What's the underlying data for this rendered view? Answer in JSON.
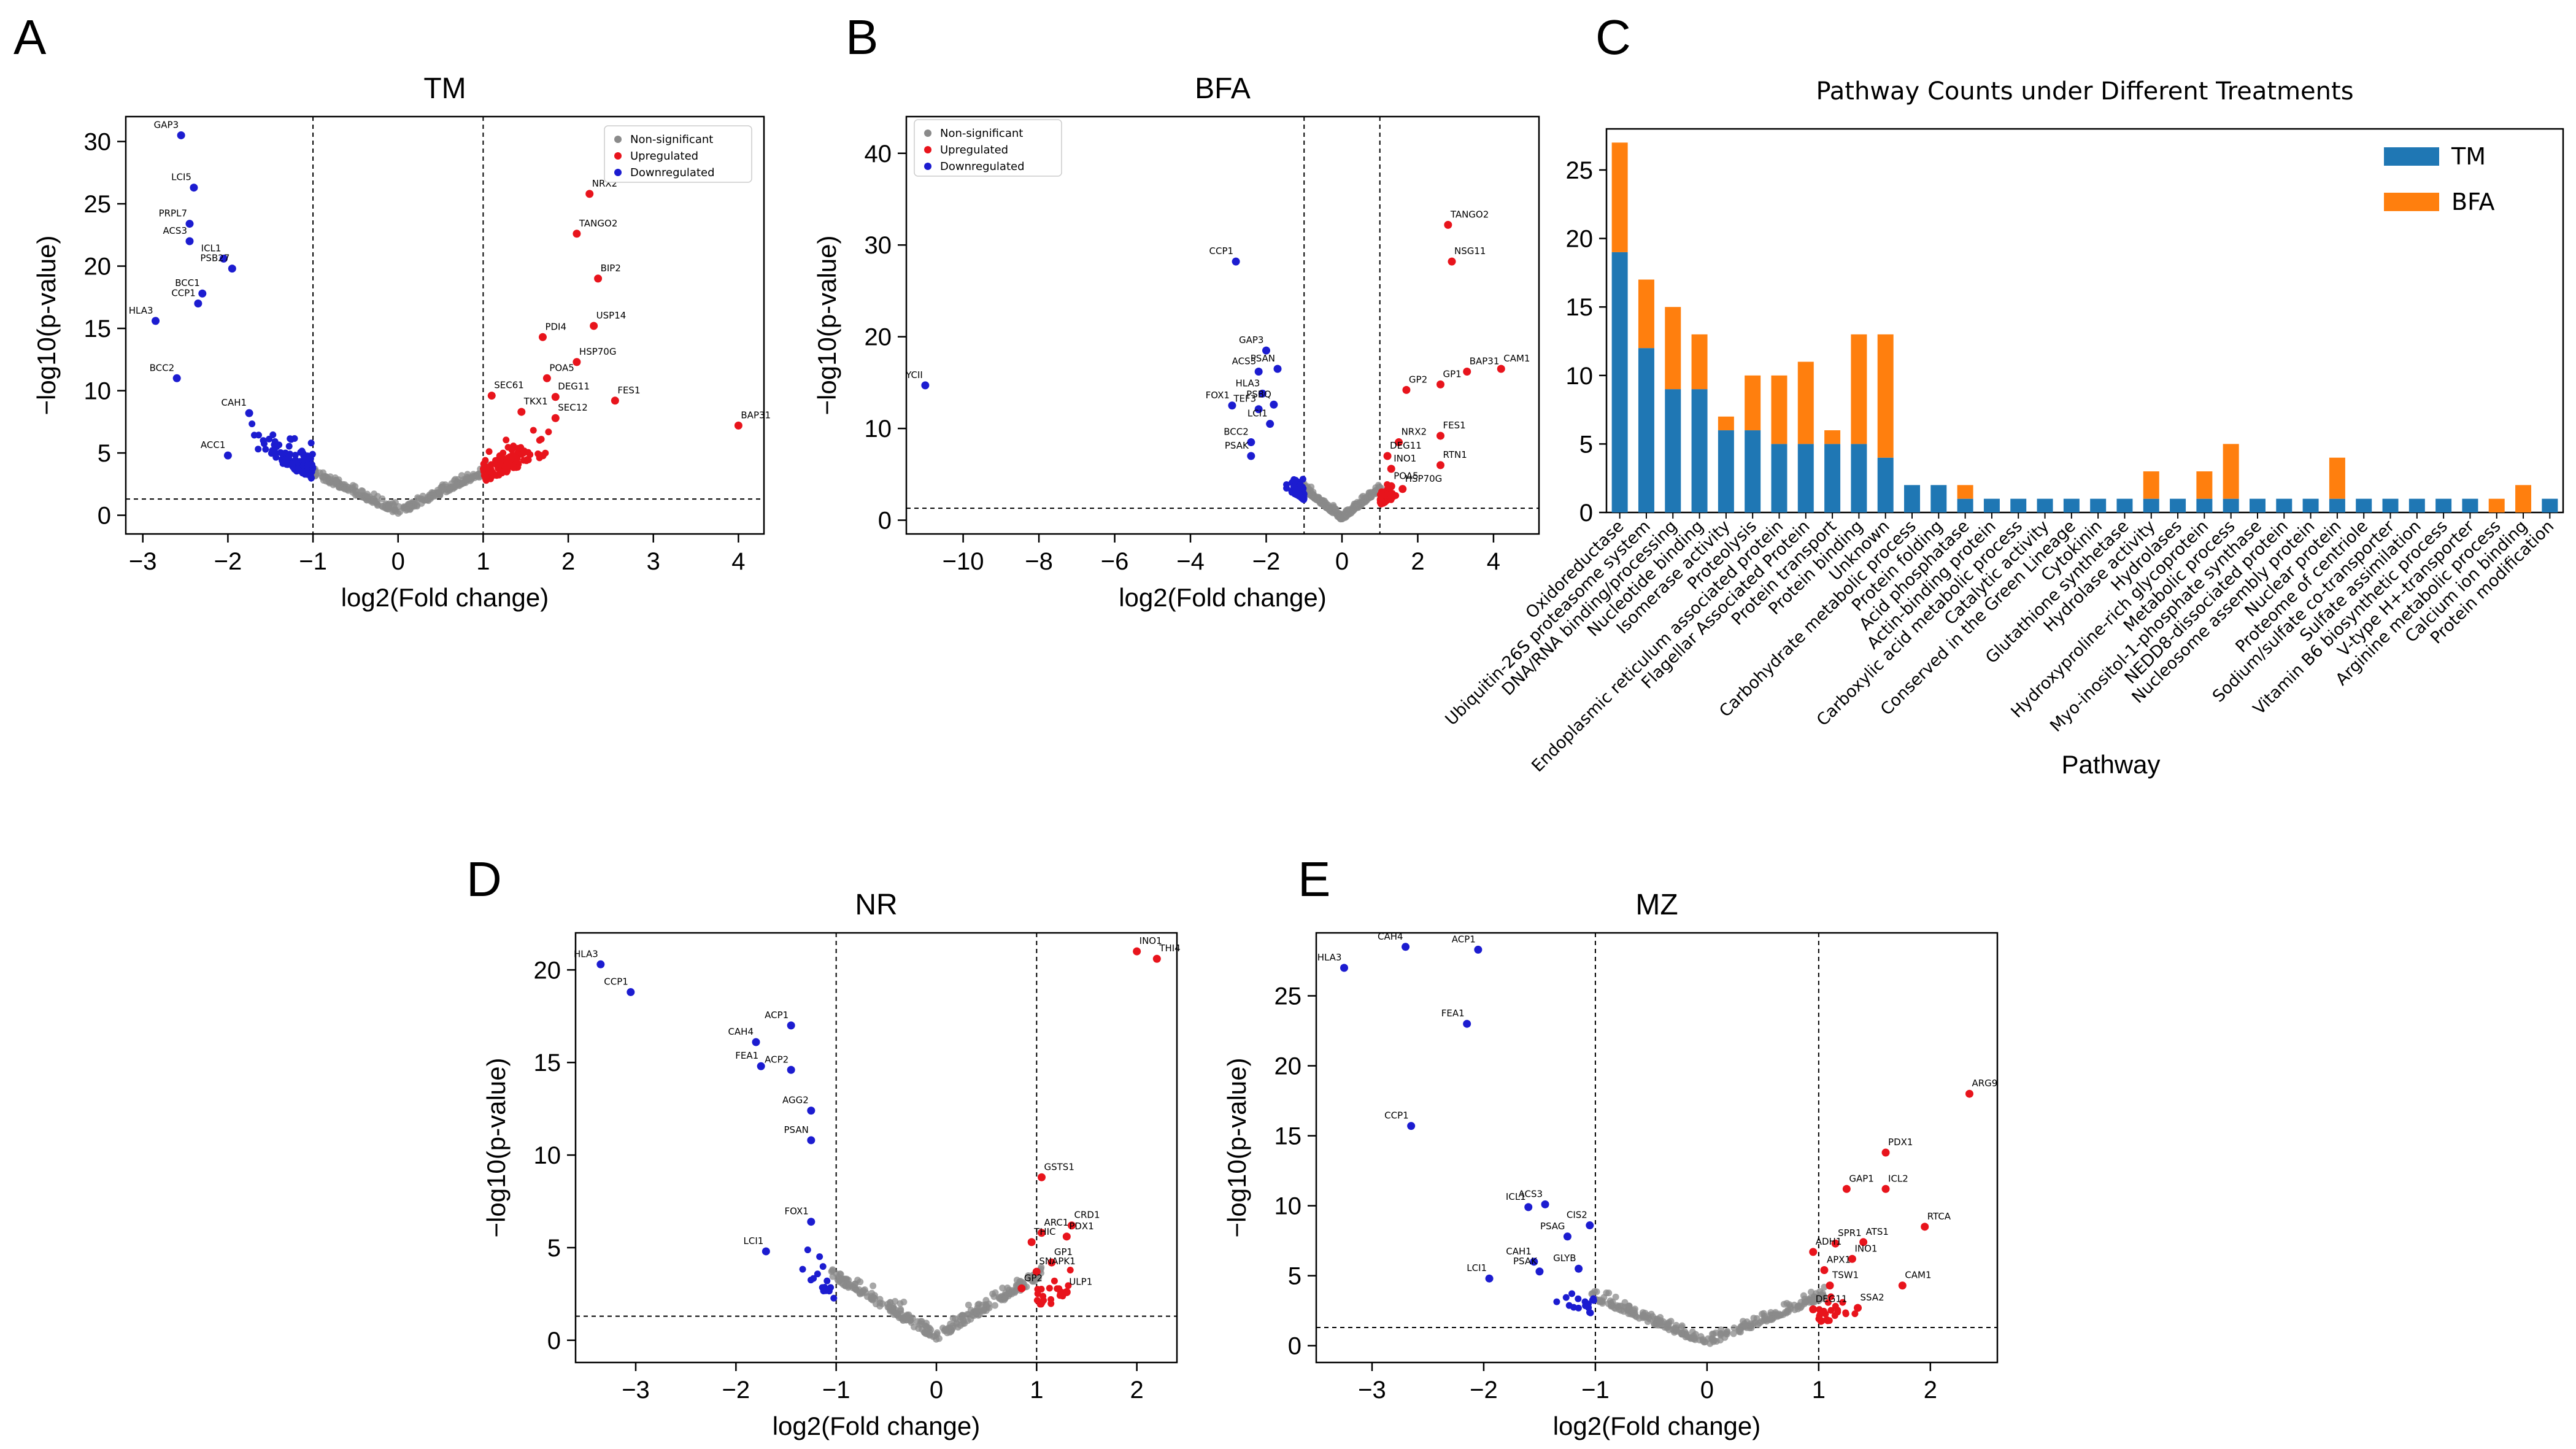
{
  "panel_letters": [
    "A",
    "B",
    "C",
    "D",
    "E"
  ],
  "colors": {
    "nonsig": "#8a8a8a",
    "up": "#e8141c",
    "down": "#1c1cd0",
    "tm_bar": "#1f77b4",
    "bfa_bar": "#ff7f0e",
    "threshold_line": "#000000"
  },
  "volcano_legend": [
    "Non-significant",
    "Upregulated",
    "Downregulated"
  ],
  "chart_data": [
    {
      "id": "TM",
      "type": "scatter",
      "title": "TM",
      "xlabel": "log2(Fold change)",
      "ylabel": "−log10(p-value)",
      "xlim": [
        -3.2,
        4.3
      ],
      "ylim": [
        -1.5,
        32
      ],
      "xticks": [
        -3,
        -2,
        -1,
        0,
        1,
        2,
        3,
        4
      ],
      "yticks": [
        0,
        5,
        10,
        15,
        20,
        25,
        30
      ],
      "fc_threshold": 1,
      "p_threshold": 1.3,
      "legend": "top-right",
      "labeled_points": [
        {
          "label": "GAP3",
          "x": -2.55,
          "y": 30.5,
          "group": "down"
        },
        {
          "label": "LCI5",
          "x": -2.4,
          "y": 26.3,
          "group": "down"
        },
        {
          "label": "PRPL7",
          "x": -2.45,
          "y": 23.4,
          "group": "down"
        },
        {
          "label": "ACS3",
          "x": -2.45,
          "y": 22.0,
          "group": "down"
        },
        {
          "label": "ICL1",
          "x": -2.05,
          "y": 20.6,
          "group": "down"
        },
        {
          "label": "PSB27",
          "x": -1.95,
          "y": 19.8,
          "group": "down"
        },
        {
          "label": "BCC1",
          "x": -2.3,
          "y": 17.8,
          "group": "down"
        },
        {
          "label": "CCP1",
          "x": -2.35,
          "y": 17.0,
          "group": "down"
        },
        {
          "label": "HLA3",
          "x": -2.85,
          "y": 15.6,
          "group": "down"
        },
        {
          "label": "BCC2",
          "x": -2.6,
          "y": 11.0,
          "group": "down"
        },
        {
          "label": "CAH1",
          "x": -1.75,
          "y": 8.2,
          "group": "down"
        },
        {
          "label": "ACC1",
          "x": -2.0,
          "y": 4.8,
          "group": "down"
        },
        {
          "label": "NRX2",
          "x": 2.25,
          "y": 25.8,
          "group": "up"
        },
        {
          "label": "TANGO2",
          "x": 2.1,
          "y": 22.6,
          "group": "up"
        },
        {
          "label": "BIP2",
          "x": 2.35,
          "y": 19.0,
          "group": "up"
        },
        {
          "label": "USP14",
          "x": 2.3,
          "y": 15.2,
          "group": "up"
        },
        {
          "label": "PDI4",
          "x": 1.7,
          "y": 14.3,
          "group": "up"
        },
        {
          "label": "HSP70G",
          "x": 2.1,
          "y": 12.3,
          "group": "up"
        },
        {
          "label": "POA5",
          "x": 1.75,
          "y": 11.0,
          "group": "up"
        },
        {
          "label": "DEG11",
          "x": 1.85,
          "y": 9.5,
          "group": "up"
        },
        {
          "label": "SEC61",
          "x": 1.1,
          "y": 9.6,
          "group": "up"
        },
        {
          "label": "TKX1",
          "x": 1.45,
          "y": 8.3,
          "group": "up"
        },
        {
          "label": "SEC12",
          "x": 1.85,
          "y": 7.8,
          "group": "up"
        },
        {
          "label": "FES1",
          "x": 2.55,
          "y": 9.2,
          "group": "up"
        },
        {
          "label": "BAP31",
          "x": 4.0,
          "y": 7.2,
          "group": "up"
        }
      ]
    },
    {
      "id": "BFA",
      "type": "scatter",
      "title": "BFA",
      "xlabel": "log2(Fold change)",
      "ylabel": "−log10(p-value)",
      "xlim": [
        -11.5,
        5.2
      ],
      "ylim": [
        -1.5,
        44
      ],
      "xticks": [
        -10,
        -8,
        -6,
        -4,
        -2,
        0,
        2,
        4
      ],
      "yticks": [
        0,
        10,
        20,
        30,
        40
      ],
      "fc_threshold": 1,
      "p_threshold": 1.3,
      "legend": "top-left",
      "labeled_points": [
        {
          "label": "CCP1",
          "x": -2.8,
          "y": 28.2,
          "group": "down"
        },
        {
          "label": "YCII",
          "x": -11.0,
          "y": 14.7,
          "group": "down"
        },
        {
          "label": "GAP3",
          "x": -2.0,
          "y": 18.5,
          "group": "down"
        },
        {
          "label": "PSAN",
          "x": -1.7,
          "y": 16.5,
          "group": "down"
        },
        {
          "label": "ACS3",
          "x": -2.2,
          "y": 16.2,
          "group": "down"
        },
        {
          "label": "HLA3",
          "x": -2.1,
          "y": 13.8,
          "group": "down"
        },
        {
          "label": "FOX1",
          "x": -2.9,
          "y": 12.5,
          "group": "down"
        },
        {
          "label": "TEF3",
          "x": -2.2,
          "y": 12.1,
          "group": "down"
        },
        {
          "label": "PSBQ",
          "x": -1.8,
          "y": 12.6,
          "group": "down"
        },
        {
          "label": "LCI1",
          "x": -1.9,
          "y": 10.5,
          "group": "down"
        },
        {
          "label": "BCC2",
          "x": -2.4,
          "y": 8.5,
          "group": "down"
        },
        {
          "label": "PSAK",
          "x": -2.4,
          "y": 7.0,
          "group": "down"
        },
        {
          "label": "TANGO2",
          "x": 2.8,
          "y": 32.2,
          "group": "up"
        },
        {
          "label": "NSG11",
          "x": 2.9,
          "y": 28.2,
          "group": "up"
        },
        {
          "label": "CAM1",
          "x": 4.2,
          "y": 16.5,
          "group": "up"
        },
        {
          "label": "BAP31",
          "x": 3.3,
          "y": 16.2,
          "group": "up"
        },
        {
          "label": "GP1",
          "x": 2.6,
          "y": 14.8,
          "group": "up"
        },
        {
          "label": "GP2",
          "x": 1.7,
          "y": 14.2,
          "group": "up"
        },
        {
          "label": "FES1",
          "x": 2.6,
          "y": 9.2,
          "group": "up"
        },
        {
          "label": "NRX2",
          "x": 1.5,
          "y": 8.5,
          "group": "up"
        },
        {
          "label": "DEG11",
          "x": 1.2,
          "y": 7.0,
          "group": "up"
        },
        {
          "label": "INO1",
          "x": 1.3,
          "y": 5.6,
          "group": "up"
        },
        {
          "label": "RTN1",
          "x": 2.6,
          "y": 6.0,
          "group": "up"
        },
        {
          "label": "POA5",
          "x": 1.3,
          "y": 3.7,
          "group": "up"
        },
        {
          "label": "HSP70G",
          "x": 1.6,
          "y": 3.4,
          "group": "up"
        }
      ]
    },
    {
      "id": "Pathway",
      "type": "bar",
      "stacked": true,
      "title": "Pathway Counts under Different Treatments",
      "xlabel": "Pathway",
      "ylabel": "",
      "ylim": [
        0,
        28
      ],
      "yticks": [
        0,
        5,
        10,
        15,
        20,
        25
      ],
      "legend": "top-right",
      "categories": [
        "Oxidoreductase",
        "Ubiquitin-26S proteasome system",
        "DNA/RNA binding/processing",
        "Nucleotide binding",
        "Isomerase activity",
        "Proteolysis",
        "Endoplasmic reticulum associated protein",
        "Flagellar Associated Protein",
        "Protein transport",
        "Protein binding",
        "Unknown",
        "Carbohydrate metabolic process",
        "Protein folding",
        "Acid phosphatase",
        "Actin-binding protein",
        "Carboxylic acid metabolic process",
        "Catalytic activity",
        "Conserved in the Green Lineage",
        "Cytokinin",
        "Glutathione synthetase",
        "Hydrolase activity",
        "Hydrolases",
        "Hydroxyproline-rich glycoprotein",
        "Metabolic process",
        "Myo-inositol-1-phosphate synthase",
        "NEDD8-dissociated protein",
        "Nucleosome assembly protein",
        "Nuclear protein",
        "Proteome of centriole",
        "Sodium/sulfate co-transporter",
        "Sulfate assimilation",
        "Vitamin B6 biosynthetic process",
        "V-type H+-transporter",
        "Arginine metabolic process",
        "Calcium ion binding",
        "Protein modification"
      ],
      "series": [
        {
          "name": "TM",
          "values": [
            19,
            12,
            9,
            9,
            6,
            6,
            5,
            5,
            5,
            5,
            4,
            2,
            2,
            1,
            1,
            1,
            1,
            1,
            1,
            1,
            1,
            1,
            1,
            1,
            1,
            1,
            1,
            1,
            1,
            1,
            1,
            1,
            1,
            0,
            0,
            1
          ]
        },
        {
          "name": "BFA",
          "values": [
            8,
            5,
            6,
            4,
            1,
            4,
            5,
            6,
            1,
            8,
            9,
            0,
            0,
            1,
            0,
            0,
            0,
            0,
            0,
            0,
            2,
            0,
            2,
            4,
            0,
            0,
            0,
            3,
            0,
            0,
            0,
            0,
            0,
            1,
            2,
            0
          ]
        }
      ]
    },
    {
      "id": "NR",
      "type": "scatter",
      "title": "NR",
      "xlabel": "log2(Fold change)",
      "ylabel": "−log10(p-value)",
      "xlim": [
        -3.6,
        2.4
      ],
      "ylim": [
        -1.2,
        22
      ],
      "xticks": [
        -3,
        -2,
        -1,
        0,
        1,
        2
      ],
      "yticks": [
        0,
        5,
        10,
        15,
        20
      ],
      "fc_threshold": 1,
      "p_threshold": 1.3,
      "labeled_points": [
        {
          "label": "HLA3",
          "x": -3.35,
          "y": 20.3,
          "group": "down"
        },
        {
          "label": "CCP1",
          "x": -3.05,
          "y": 18.8,
          "group": "down"
        },
        {
          "label": "ACP1",
          "x": -1.45,
          "y": 17.0,
          "group": "down"
        },
        {
          "label": "CAH4",
          "x": -1.8,
          "y": 16.1,
          "group": "down"
        },
        {
          "label": "FEA1",
          "x": -1.75,
          "y": 14.8,
          "group": "down"
        },
        {
          "label": "ACP2",
          "x": -1.45,
          "y": 14.6,
          "group": "down"
        },
        {
          "label": "AGG2",
          "x": -1.25,
          "y": 12.4,
          "group": "down"
        },
        {
          "label": "PSAN",
          "x": -1.25,
          "y": 10.8,
          "group": "down"
        },
        {
          "label": "FOX1",
          "x": -1.25,
          "y": 6.4,
          "group": "down"
        },
        {
          "label": "LCI1",
          "x": -1.7,
          "y": 4.8,
          "group": "down"
        },
        {
          "label": "INO1",
          "x": 2.0,
          "y": 21.0,
          "group": "up"
        },
        {
          "label": "THI4",
          "x": 2.2,
          "y": 20.6,
          "group": "up"
        },
        {
          "label": "GSTS1",
          "x": 1.05,
          "y": 8.8,
          "group": "up"
        },
        {
          "label": "ARC1",
          "x": 1.05,
          "y": 5.8,
          "group": "up"
        },
        {
          "label": "CRD1",
          "x": 1.35,
          "y": 6.2,
          "group": "up"
        },
        {
          "label": "THIC",
          "x": 0.95,
          "y": 5.3,
          "group": "up"
        },
        {
          "label": "PDX1",
          "x": 1.3,
          "y": 5.6,
          "group": "up"
        },
        {
          "label": "GP1",
          "x": 1.15,
          "y": 4.2,
          "group": "up"
        },
        {
          "label": "SNAPK1",
          "x": 1.0,
          "y": 3.7,
          "group": "up"
        },
        {
          "label": "GP2",
          "x": 0.85,
          "y": 2.8,
          "group": "up"
        },
        {
          "label": "ULP1",
          "x": 1.3,
          "y": 2.6,
          "group": "up"
        }
      ]
    },
    {
      "id": "MZ",
      "type": "scatter",
      "title": "MZ",
      "xlabel": "log2(Fold change)",
      "ylabel": "−log10(p-value)",
      "xlim": [
        -3.5,
        2.6
      ],
      "ylim": [
        -1.2,
        29.5
      ],
      "xticks": [
        -3,
        -2,
        -1,
        0,
        1,
        2
      ],
      "yticks": [
        0,
        5,
        10,
        15,
        20,
        25
      ],
      "fc_threshold": 1,
      "p_threshold": 1.3,
      "labeled_points": [
        {
          "label": "HLA3",
          "x": -3.25,
          "y": 27.0,
          "group": "down"
        },
        {
          "label": "CAH4",
          "x": -2.7,
          "y": 28.5,
          "group": "down"
        },
        {
          "label": "ACP1",
          "x": -2.05,
          "y": 28.3,
          "group": "down"
        },
        {
          "label": "FEA1",
          "x": -2.15,
          "y": 23.0,
          "group": "down"
        },
        {
          "label": "CCP1",
          "x": -2.65,
          "y": 15.7,
          "group": "down"
        },
        {
          "label": "ICL1",
          "x": -1.6,
          "y": 9.9,
          "group": "down"
        },
        {
          "label": "ACS3",
          "x": -1.45,
          "y": 10.1,
          "group": "down"
        },
        {
          "label": "PSAG",
          "x": -1.25,
          "y": 7.8,
          "group": "down"
        },
        {
          "label": "CIS2",
          "x": -1.05,
          "y": 8.6,
          "group": "down"
        },
        {
          "label": "CAH1",
          "x": -1.55,
          "y": 6.0,
          "group": "down"
        },
        {
          "label": "LCI1",
          "x": -1.95,
          "y": 4.8,
          "group": "down"
        },
        {
          "label": "PSAK",
          "x": -1.5,
          "y": 5.3,
          "group": "down"
        },
        {
          "label": "GLYB",
          "x": -1.15,
          "y": 5.5,
          "group": "down"
        },
        {
          "label": "ARG9",
          "x": 2.35,
          "y": 18.0,
          "group": "up"
        },
        {
          "label": "PDX1",
          "x": 1.6,
          "y": 13.8,
          "group": "up"
        },
        {
          "label": "GAP1",
          "x": 1.25,
          "y": 11.2,
          "group": "up"
        },
        {
          "label": "ICL2",
          "x": 1.6,
          "y": 11.2,
          "group": "up"
        },
        {
          "label": "RTCA",
          "x": 1.95,
          "y": 8.5,
          "group": "up"
        },
        {
          "label": "ATS1",
          "x": 1.4,
          "y": 7.4,
          "group": "up"
        },
        {
          "label": "SPR1",
          "x": 1.15,
          "y": 7.3,
          "group": "up"
        },
        {
          "label": "ADH1",
          "x": 0.95,
          "y": 6.7,
          "group": "up"
        },
        {
          "label": "INO1",
          "x": 1.3,
          "y": 6.2,
          "group": "up"
        },
        {
          "label": "APX1",
          "x": 1.05,
          "y": 5.4,
          "group": "up"
        },
        {
          "label": "TSW1",
          "x": 1.1,
          "y": 4.3,
          "group": "up"
        },
        {
          "label": "CAM1",
          "x": 1.75,
          "y": 4.3,
          "group": "up"
        },
        {
          "label": "SSA2",
          "x": 1.35,
          "y": 2.7,
          "group": "up"
        },
        {
          "label": "DEG11",
          "x": 0.95,
          "y": 2.6,
          "group": "up"
        }
      ]
    }
  ]
}
